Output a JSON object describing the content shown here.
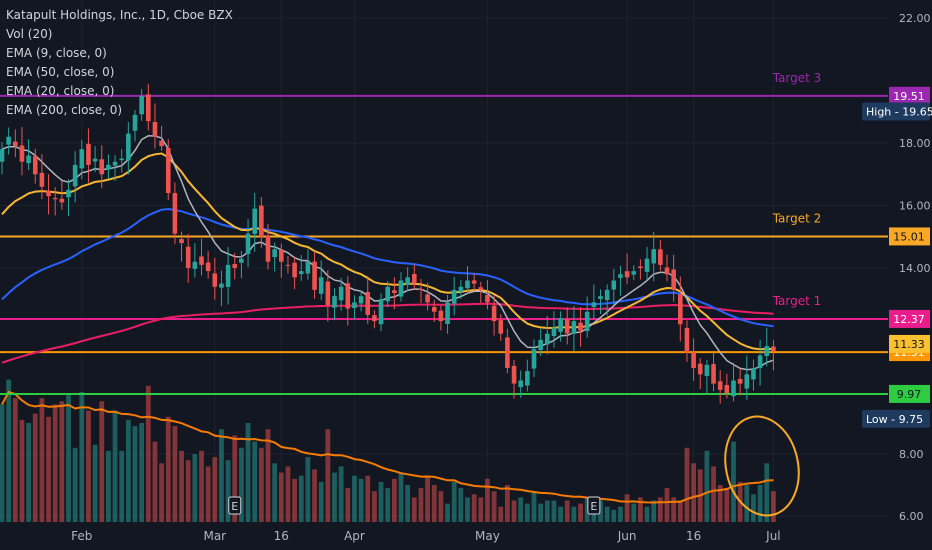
{
  "chart_data": {
    "type": "candlestick",
    "title": "Katapult Holdings, Inc., 1D, Cboe BZX",
    "indicators": [
      "Vol (20)",
      "EMA (9, close, 0)",
      "EMA (50, close, 0)",
      "EMA (20, close, 0)",
      "EMA (200, close, 0)"
    ],
    "y_ticks": [
      "22.00",
      "18.00",
      "16.00",
      "14.00",
      "8.00",
      "6.00"
    ],
    "price_range": [
      9.0,
      22.6
    ],
    "x_ticks": [
      {
        "label": "Feb",
        "index": 12
      },
      {
        "label": "Mar",
        "index": 32
      },
      {
        "label": "16",
        "index": 42
      },
      {
        "label": "Apr",
        "index": 53
      },
      {
        "label": "May",
        "index": 73
      },
      {
        "label": "Jun",
        "index": 94
      },
      {
        "label": "16",
        "index": 104
      },
      {
        "label": "Jul",
        "index": 116
      }
    ],
    "horizontal_levels": [
      {
        "price": 19.51,
        "label": "19.51",
        "name": "Target 3",
        "color": "#9c27b0"
      },
      {
        "price": 15.01,
        "label": "15.01",
        "name": "Target 2",
        "color": "#f9a825"
      },
      {
        "price": 12.37,
        "label": "12.37",
        "name": "Target 1",
        "color": "#e91e8c"
      },
      {
        "price": 11.31,
        "label": "11.31",
        "name": "",
        "color": "#ff9800"
      },
      {
        "price": 9.97,
        "label": "9.97",
        "name": "",
        "color": "#2ecc40"
      }
    ],
    "last_price": {
      "price": 11.33,
      "label": "11.33",
      "color": "#fbc02d"
    },
    "high": {
      "label": "High",
      "value": "19.65",
      "price": 19.65
    },
    "low": {
      "label": "Low",
      "value": "9.75",
      "price": 9.75
    },
    "earnings_markers": [
      {
        "label": "E",
        "index": 35
      },
      {
        "label": "E",
        "index": 89
      }
    ],
    "series": [
      {
        "name": "EMA (9, close, 0)",
        "color": "#b2b5be"
      },
      {
        "name": "EMA (20, close, 0)",
        "color": "#f7b731"
      },
      {
        "name": "EMA (50, close, 0)",
        "color": "#2962ff"
      },
      {
        "name": "EMA (200, close, 0)",
        "color": "#e91e63"
      },
      {
        "name": "Vol (20)",
        "color": "#f57c00"
      }
    ],
    "closes": [
      17.8,
      18.2,
      17.9,
      17.4,
      17.6,
      17.0,
      16.6,
      16.3,
      16.2,
      16.1,
      16.5,
      17.3,
      17.8,
      17.3,
      17.5,
      17.0,
      17.3,
      17.4,
      17.5,
      18.3,
      18.9,
      19.5,
      18.7,
      18.2,
      17.9,
      16.4,
      15.1,
      14.8,
      14.0,
      14.2,
      14.1,
      13.9,
      13.4,
      13.5,
      14.1,
      14.0,
      14.3,
      15.1,
      15.9,
      15.0,
      14.2,
      14.6,
      14.2,
      14.1,
      13.7,
      13.9,
      14.2,
      13.3,
      13.7,
      12.8,
      13.1,
      13.4,
      12.7,
      12.9,
      13.1,
      12.5,
      12.3,
      13.0,
      13.4,
      13.2,
      13.6,
      13.7,
      13.5,
      13.3,
      12.9,
      12.6,
      12.3,
      12.9,
      13.3,
      13.4,
      13.6,
      13.5,
      13.3,
      12.9,
      12.3,
      11.9,
      10.8,
      10.3,
      10.4,
      10.7,
      11.4,
      11.7,
      11.9,
      12.1,
      12.4,
      11.9,
      12.3,
      12.0,
      12.6,
      12.9,
      13.1,
      13.3,
      13.6,
      13.8,
      13.7,
      13.9,
      14.0,
      14.3,
      14.6,
      14.1,
      13.8,
      13.3,
      12.2,
      11.3,
      10.8,
      10.6,
      10.9,
      10.3,
      10.1,
      10.0,
      10.4,
      10.3,
      10.6,
      10.8,
      11.2,
      11.5,
      11.33
    ],
    "volumes": [
      9.6,
      10.4,
      9.8,
      9.1,
      9.0,
      9.3,
      9.8,
      9.2,
      9.6,
      9.7,
      9.9,
      8.2,
      10.0,
      9.4,
      8.3,
      9.7,
      8.1,
      9.4,
      8.1,
      9.1,
      8.9,
      9.0,
      10.2,
      8.4,
      7.7,
      9.2,
      8.9,
      8.1,
      7.8,
      8.0,
      8.1,
      7.6,
      7.9,
      8.8,
      7.8,
      8.6,
      8.2,
      9.0,
      8.4,
      8.2,
      8.8,
      7.7,
      7.4,
      7.6,
      7.2,
      7.3,
      7.9,
      7.5,
      7.1,
      8.8,
      7.4,
      7.6,
      6.9,
      7.3,
      7.2,
      7.3,
      6.8,
      7.1,
      6.9,
      7.2,
      7.4,
      7.0,
      6.6,
      6.9,
      7.3,
      7.0,
      6.8,
      6.4,
      7.1,
      6.9,
      6.6,
      6.7,
      6.6,
      7.2,
      6.8,
      6.3,
      7.0,
      6.5,
      6.6,
      6.4,
      6.8,
      6.4,
      6.5,
      6.5,
      6.3,
      6.5,
      6.3,
      6.4,
      6.6,
      6.2,
      6.5,
      6.3,
      6.2,
      6.3,
      6.7,
      6.4,
      6.6,
      6.3,
      6.5,
      6.6,
      6.9,
      6.6,
      6.5,
      8.2,
      7.7,
      7.5,
      8.1,
      7.6,
      7.0,
      6.9,
      8.4,
      7.1,
      7.0,
      6.7,
      7.0,
      7.7,
      6.8
    ],
    "volume_axis_note": "volume pane shares the price scale ticks 8.00 / 6.00"
  }
}
